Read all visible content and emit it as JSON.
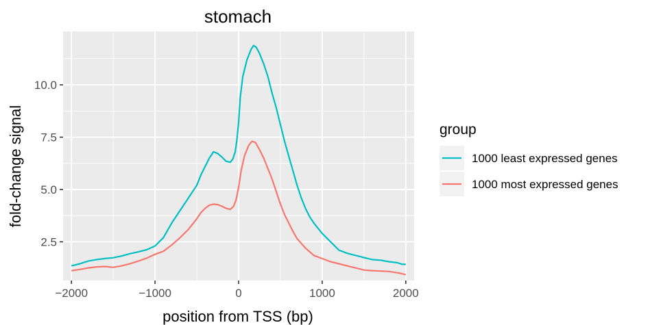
{
  "chart_data": {
    "type": "line",
    "title": "stomach",
    "xlabel": "position from TSS (bp)",
    "ylabel": "fold-change signal",
    "xlim": [
      -2100,
      2100
    ],
    "ylim": [
      0.65,
      12.55
    ],
    "x_ticks": [
      -2000,
      -1000,
      0,
      1000,
      2000
    ],
    "x_tick_labels": [
      "−2000",
      "−1000",
      "0",
      "1000",
      "2000"
    ],
    "y_ticks": [
      2.5,
      5.0,
      7.5,
      10.0
    ],
    "y_tick_labels": [
      "2.5",
      "5.0",
      "7.5",
      "10.0"
    ],
    "grid": true,
    "legend": {
      "title": "group",
      "position": "right"
    },
    "series": [
      {
        "name": "1000 least expressed genes",
        "color": "#00BFC4",
        "points": [
          [
            -2000,
            1.35
          ],
          [
            -1900,
            1.45
          ],
          [
            -1800,
            1.58
          ],
          [
            -1700,
            1.65
          ],
          [
            -1600,
            1.7
          ],
          [
            -1500,
            1.74
          ],
          [
            -1400,
            1.82
          ],
          [
            -1300,
            1.93
          ],
          [
            -1200,
            2.02
          ],
          [
            -1100,
            2.12
          ],
          [
            -1000,
            2.3
          ],
          [
            -900,
            2.7
          ],
          [
            -800,
            3.4
          ],
          [
            -700,
            4.0
          ],
          [
            -600,
            4.6
          ],
          [
            -500,
            5.2
          ],
          [
            -450,
            5.7
          ],
          [
            -400,
            6.1
          ],
          [
            -350,
            6.5
          ],
          [
            -300,
            6.8
          ],
          [
            -250,
            6.72
          ],
          [
            -200,
            6.55
          ],
          [
            -150,
            6.35
          ],
          [
            -100,
            6.3
          ],
          [
            -70,
            6.45
          ],
          [
            -40,
            6.8
          ],
          [
            -20,
            7.4
          ],
          [
            0,
            8.2
          ],
          [
            20,
            9.4
          ],
          [
            50,
            10.4
          ],
          [
            100,
            11.2
          ],
          [
            150,
            11.7
          ],
          [
            180,
            11.88
          ],
          [
            210,
            11.8
          ],
          [
            250,
            11.5
          ],
          [
            300,
            11.0
          ],
          [
            350,
            10.4
          ],
          [
            400,
            9.6
          ],
          [
            450,
            8.9
          ],
          [
            500,
            8.1
          ],
          [
            550,
            7.3
          ],
          [
            600,
            6.6
          ],
          [
            650,
            5.9
          ],
          [
            700,
            5.2
          ],
          [
            750,
            4.6
          ],
          [
            800,
            4.1
          ],
          [
            850,
            3.7
          ],
          [
            900,
            3.4
          ],
          [
            1000,
            2.9
          ],
          [
            1100,
            2.5
          ],
          [
            1200,
            2.1
          ],
          [
            1300,
            1.95
          ],
          [
            1400,
            1.85
          ],
          [
            1500,
            1.75
          ],
          [
            1600,
            1.65
          ],
          [
            1700,
            1.62
          ],
          [
            1800,
            1.55
          ],
          [
            1900,
            1.5
          ],
          [
            1950,
            1.43
          ],
          [
            2000,
            1.42
          ]
        ]
      },
      {
        "name": "1000 most expressed genes",
        "color": "#F8766D",
        "points": [
          [
            -2000,
            1.12
          ],
          [
            -1900,
            1.18
          ],
          [
            -1800,
            1.25
          ],
          [
            -1700,
            1.3
          ],
          [
            -1600,
            1.32
          ],
          [
            -1500,
            1.28
          ],
          [
            -1400,
            1.35
          ],
          [
            -1300,
            1.45
          ],
          [
            -1200,
            1.58
          ],
          [
            -1100,
            1.72
          ],
          [
            -1000,
            1.9
          ],
          [
            -900,
            2.05
          ],
          [
            -800,
            2.35
          ],
          [
            -700,
            2.7
          ],
          [
            -600,
            3.1
          ],
          [
            -500,
            3.6
          ],
          [
            -450,
            3.9
          ],
          [
            -400,
            4.1
          ],
          [
            -350,
            4.25
          ],
          [
            -300,
            4.3
          ],
          [
            -250,
            4.28
          ],
          [
            -200,
            4.2
          ],
          [
            -150,
            4.1
          ],
          [
            -100,
            4.05
          ],
          [
            -60,
            4.2
          ],
          [
            -30,
            4.5
          ],
          [
            0,
            5.1
          ],
          [
            30,
            5.9
          ],
          [
            70,
            6.6
          ],
          [
            120,
            7.1
          ],
          [
            160,
            7.3
          ],
          [
            200,
            7.25
          ],
          [
            250,
            6.9
          ],
          [
            300,
            6.5
          ],
          [
            350,
            6.0
          ],
          [
            400,
            5.5
          ],
          [
            450,
            4.9
          ],
          [
            500,
            4.3
          ],
          [
            550,
            3.8
          ],
          [
            600,
            3.4
          ],
          [
            650,
            3.0
          ],
          [
            700,
            2.65
          ],
          [
            800,
            2.2
          ],
          [
            900,
            1.85
          ],
          [
            1000,
            1.7
          ],
          [
            1100,
            1.55
          ],
          [
            1200,
            1.45
          ],
          [
            1300,
            1.35
          ],
          [
            1400,
            1.25
          ],
          [
            1500,
            1.15
          ],
          [
            1600,
            1.12
          ],
          [
            1700,
            1.1
          ],
          [
            1800,
            1.08
          ],
          [
            1900,
            1.02
          ],
          [
            1950,
            0.98
          ],
          [
            2000,
            0.93
          ]
        ]
      }
    ]
  }
}
